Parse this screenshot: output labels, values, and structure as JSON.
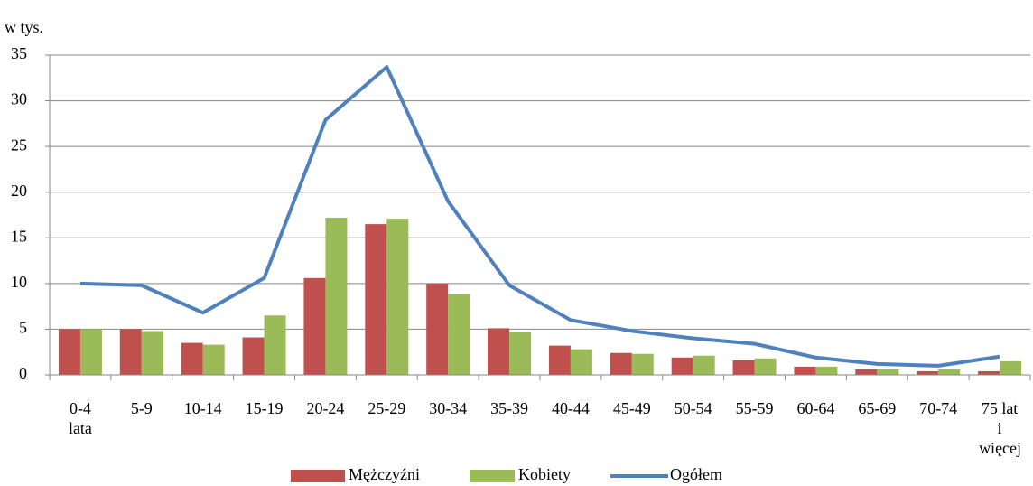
{
  "chart_data": {
    "type": "bar_line",
    "y_label": "w tys.",
    "categories": [
      "0-4 lata",
      "5-9",
      "10-14",
      "15-19",
      "20-24",
      "25-29",
      "30-34",
      "35-39",
      "40-44",
      "45-49",
      "50-54",
      "55-59",
      "60-64",
      "65-69",
      "70-74",
      "75 lat i więcej"
    ],
    "series": [
      {
        "name": "Mężczyźni",
        "color": "#c0504d",
        "kind": "bar",
        "values": [
          5.0,
          5.0,
          3.5,
          4.1,
          10.6,
          16.5,
          10.0,
          5.1,
          3.2,
          2.4,
          1.9,
          1.6,
          0.9,
          0.6,
          0.4,
          0.4
        ]
      },
      {
        "name": "Kobiety",
        "color": "#9bbb59",
        "kind": "bar",
        "values": [
          5.0,
          4.8,
          3.3,
          6.5,
          17.2,
          17.1,
          8.9,
          4.7,
          2.8,
          2.3,
          2.1,
          1.8,
          0.9,
          0.6,
          0.6,
          1.5
        ]
      },
      {
        "name": "Ogółem",
        "color": "#4f81bd",
        "kind": "line",
        "values": [
          10.0,
          9.8,
          6.8,
          10.6,
          27.9,
          33.7,
          19.0,
          9.8,
          6.0,
          4.8,
          4.0,
          3.4,
          1.9,
          1.2,
          1.0,
          2.0
        ]
      }
    ],
    "ylim": [
      0,
      35
    ],
    "yticks": [
      0,
      5,
      10,
      15,
      20,
      25,
      30,
      35
    ],
    "grid": true
  }
}
